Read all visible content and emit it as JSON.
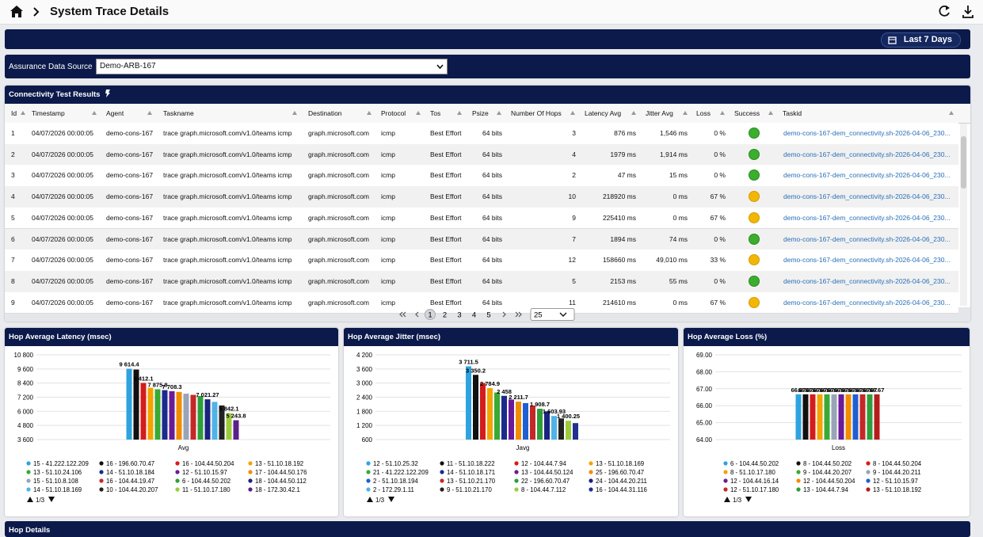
{
  "header": {
    "title": "System Trace Details",
    "date_range": "Last 7 Days"
  },
  "source": {
    "label": "Assurance Data Source",
    "value": "Demo-ARB-167"
  },
  "table": {
    "title": "Connectivity Test Results",
    "columns": [
      "Id",
      "Timestamp",
      "Agent",
      "Taskname",
      "Destination",
      "Protocol",
      "Tos",
      "Psize",
      "Number Of Hops",
      "Latency Avg",
      "Jitter Avg",
      "Loss",
      "Success",
      "Taskid"
    ],
    "rows": [
      {
        "cells": [
          "1",
          "04/07/2026 00:00:05",
          "demo-cons-167",
          "trace graph.microsoft.com/v1.0/teams icmp",
          "graph.microsoft.com",
          "icmp",
          "Best Effort",
          "64 bits",
          "3",
          "876 ms",
          "1,546 ms",
          "0 %",
          "demo-cons-167-dem_connectivity.sh-2026-04-06_230..."
        ],
        "success": true
      },
      {
        "cells": [
          "2",
          "04/07/2026 00:00:05",
          "demo-cons-167",
          "trace graph.microsoft.com/v1.0/teams icmp",
          "graph.microsoft.com",
          "icmp",
          "Best Effort",
          "64 bits",
          "4",
          "1979 ms",
          "1,914 ms",
          "0 %",
          "demo-cons-167-dem_connectivity.sh-2026-04-06_230..."
        ],
        "success": true
      },
      {
        "cells": [
          "3",
          "04/07/2026 00:00:05",
          "demo-cons-167",
          "trace graph.microsoft.com/v1.0/teams icmp",
          "graph.microsoft.com",
          "icmp",
          "Best Effort",
          "64 bits",
          "2",
          "47 ms",
          "15 ms",
          "0 %",
          "demo-cons-167-dem_connectivity.sh-2026-04-06_230..."
        ],
        "success": true
      },
      {
        "cells": [
          "4",
          "04/07/2026 00:00:05",
          "demo-cons-167",
          "trace graph.microsoft.com/v1.0/teams icmp",
          "graph.microsoft.com",
          "icmp",
          "Best Effort",
          "64 bits",
          "10",
          "218920 ms",
          "0 ms",
          "67 %",
          "demo-cons-167-dem_connectivity.sh-2026-04-06_230..."
        ],
        "success": false
      },
      {
        "cells": [
          "5",
          "04/07/2026 00:00:05",
          "demo-cons-167",
          "trace graph.microsoft.com/v1.0/teams icmp",
          "graph.microsoft.com",
          "icmp",
          "Best Effort",
          "64 bits",
          "9",
          "225410 ms",
          "0 ms",
          "67 %",
          "demo-cons-167-dem_connectivity.sh-2026-04-06_230..."
        ],
        "success": false
      },
      {
        "cells": [
          "6",
          "04/07/2026 00:00:05",
          "demo-cons-167",
          "trace graph.microsoft.com/v1.0/teams icmp",
          "graph.microsoft.com",
          "icmp",
          "Best Effort",
          "64 bits",
          "7",
          "1894 ms",
          "74 ms",
          "0 %",
          "demo-cons-167-dem_connectivity.sh-2026-04-06_230..."
        ],
        "success": true
      },
      {
        "cells": [
          "7",
          "04/07/2026 00:00:05",
          "demo-cons-167",
          "trace graph.microsoft.com/v1.0/teams icmp",
          "graph.microsoft.com",
          "icmp",
          "Best Effort",
          "64 bits",
          "12",
          "158660 ms",
          "49,010 ms",
          "33 %",
          "demo-cons-167-dem_connectivity.sh-2026-04-06_230..."
        ],
        "success": false
      },
      {
        "cells": [
          "8",
          "04/07/2026 00:00:05",
          "demo-cons-167",
          "trace graph.microsoft.com/v1.0/teams icmp",
          "graph.microsoft.com",
          "icmp",
          "Best Effort",
          "64 bits",
          "5",
          "2153 ms",
          "55 ms",
          "0 %",
          "demo-cons-167-dem_connectivity.sh-2026-04-06_230..."
        ],
        "success": true
      },
      {
        "cells": [
          "9",
          "04/07/2026 00:00:05",
          "demo-cons-167",
          "trace graph.microsoft.com/v1.0/teams icmp",
          "graph.microsoft.com",
          "icmp",
          "Best Effort",
          "64 bits",
          "11",
          "214610 ms",
          "0 ms",
          "67 %",
          "demo-cons-167-dem_connectivity.sh-2026-04-06_230..."
        ],
        "success": false
      }
    ],
    "pages": [
      1,
      2,
      3,
      4,
      5
    ],
    "current_page": 1,
    "page_size": 25
  },
  "chart_data": [
    {
      "type": "bar",
      "title": "Hop Average Latency (msec)",
      "categories": [
        "Avg"
      ],
      "ylim": [
        3600,
        10800
      ],
      "yticks": [
        {
          "value": 3600,
          "label": "3 600"
        },
        {
          "value": 4800,
          "label": "4 800"
        },
        {
          "value": 6000,
          "label": "6 000"
        },
        {
          "value": 7200,
          "label": "7 200"
        },
        {
          "value": 8400,
          "label": "8 400"
        },
        {
          "value": 9600,
          "label": "9 600"
        },
        {
          "value": 10800,
          "label": "10 800"
        }
      ],
      "grid": true,
      "legend_page": "1/3",
      "series": [
        {
          "name": "15 - 41.222.122.209",
          "color": "#2ea3e0",
          "values": [
            9614.4
          ],
          "value_labels": [
            "9 614.4"
          ]
        },
        {
          "name": "16 - 196.60.70.47",
          "color": "#111111",
          "values": [
            9550
          ]
        },
        {
          "name": "16 - 104.44.50.204",
          "color": "#d41c1c",
          "values": [
            8412.1
          ],
          "value_labels": [
            "8 412.1"
          ]
        },
        {
          "name": "13 - 51.10.18.192",
          "color": "#f4a300",
          "values": [
            8000
          ]
        },
        {
          "name": "13 - 51.10.24.106",
          "color": "#3aaa35",
          "values": [
            7875.8
          ],
          "value_labels": [
            "7 875.8"
          ]
        },
        {
          "name": "14 - 51.10.18.184",
          "color": "#1c2a8c",
          "values": [
            7800
          ]
        },
        {
          "name": "12 - 51.10.15.97",
          "color": "#6a1b9a",
          "values": [
            7708.3
          ],
          "value_labels": [
            "7 708.3"
          ]
        },
        {
          "name": "17 - 104.44.50.176",
          "color": "#f28c00",
          "values": [
            7650
          ]
        },
        {
          "name": "15 - 51.10.8.108",
          "color": "#9aa4b8",
          "values": [
            7500
          ]
        },
        {
          "name": "16 - 104.44.19.47",
          "color": "#c62828",
          "values": [
            7400
          ]
        },
        {
          "name": "6 - 104.44.50.202",
          "color": "#2e9e3a",
          "values": [
            7300
          ]
        },
        {
          "name": "18 - 104.44.50.112",
          "color": "#1a2380",
          "values": [
            7021.27
          ],
          "value_labels": [
            "7 021.27"
          ]
        },
        {
          "name": "14 - 51.10.18.169",
          "color": "#4fb3e8",
          "values": [
            6800
          ]
        },
        {
          "name": "10 - 104.44.20.207",
          "color": "#222222",
          "values": [
            6500
          ]
        },
        {
          "name": "11 - 51.10.17.180",
          "color": "#9ccc3c",
          "values": [
            5842.1
          ],
          "value_labels": [
            "5 842.1"
          ]
        },
        {
          "name": "18 - 172.30.42.1",
          "color": "#5b1f8a",
          "values": [
            5243.8
          ],
          "value_labels": [
            "5 243.8"
          ]
        }
      ]
    },
    {
      "type": "bar",
      "title": "Hop Average Jitter (msec)",
      "categories": [
        "Javg"
      ],
      "ylim": [
        600,
        4200
      ],
      "yticks": [
        600,
        {
          "value": 1200,
          "label": "1 200"
        },
        {
          "value": 1800,
          "label": "1 800"
        },
        {
          "value": 2400,
          "label": "2 400"
        },
        {
          "value": 3000,
          "label": "3 000"
        },
        {
          "value": 3600,
          "label": "3 600"
        },
        {
          "value": 4200,
          "label": "4 200"
        }
      ],
      "grid": true,
      "legend_page": "1/3",
      "series": [
        {
          "name": "12 - 51.10.25.32",
          "color": "#2ea3e0",
          "values": [
            3711.5
          ],
          "value_labels": [
            "3 711.5"
          ]
        },
        {
          "name": "11 - 51.10.18.222",
          "color": "#111111",
          "values": [
            3350.2
          ],
          "value_labels": [
            "3 350.2"
          ]
        },
        {
          "name": "12 - 104.44.7.94",
          "color": "#d41c1c",
          "values": [
            3000
          ]
        },
        {
          "name": "13 - 51.10.18.169",
          "color": "#f4a300",
          "values": [
            2784.9
          ],
          "value_labels": [
            "2 784.9"
          ]
        },
        {
          "name": "21 - 41.222.122.209",
          "color": "#3aaa35",
          "values": [
            2600
          ]
        },
        {
          "name": "14 - 51.10.18.171",
          "color": "#1c2a8c",
          "values": [
            2458
          ],
          "value_labels": [
            "2 458"
          ]
        },
        {
          "name": "13 - 104.44.50.124",
          "color": "#6a1b9a",
          "values": [
            2300
          ]
        },
        {
          "name": "25 - 196.60.70.47",
          "color": "#f28c00",
          "values": [
            2211.7
          ],
          "value_labels": [
            "2 211.7"
          ]
        },
        {
          "name": "2 - 51.10.18.194",
          "color": "#1f5fd1",
          "values": [
            2150
          ]
        },
        {
          "name": "13 - 51.10.21.170",
          "color": "#c62828",
          "values": [
            2050
          ]
        },
        {
          "name": "22 - 196.60.70.47",
          "color": "#2e9e3a",
          "values": [
            1908.7
          ],
          "value_labels": [
            "1 908.7"
          ]
        },
        {
          "name": "24 - 104.44.20.211",
          "color": "#1a2380",
          "values": [
            1800
          ]
        },
        {
          "name": "2 - 172.29.1.11",
          "color": "#4fb3e8",
          "values": [
            1603.93
          ],
          "value_labels": [
            "1 603.93"
          ]
        },
        {
          "name": "9 - 51.10.21.170",
          "color": "#222222",
          "values": [
            1500
          ]
        },
        {
          "name": "8 - 104.44.7.112",
          "color": "#9ccc3c",
          "values": [
            1400.25
          ],
          "value_labels": [
            "1 400.25"
          ]
        },
        {
          "name": "16 - 104.44.31.116",
          "color": "#22308f",
          "values": [
            1300
          ]
        }
      ]
    },
    {
      "type": "bar",
      "title": "Hop Average Loss (%)",
      "categories": [
        "Loss"
      ],
      "ylim": [
        64,
        69
      ],
      "yticks": [
        {
          "value": 64,
          "label": "64.00"
        },
        {
          "value": 65,
          "label": "65.00"
        },
        {
          "value": 66,
          "label": "66.00"
        },
        {
          "value": 67,
          "label": "67.00"
        },
        {
          "value": 68,
          "label": "68.00"
        },
        {
          "value": 69,
          "label": "69.00"
        }
      ],
      "grid": true,
      "data_labels": true,
      "legend_page": "1/3",
      "series": [
        {
          "name": "6 - 104.44.50.202",
          "color": "#2ea3e0",
          "values": [
            66.67
          ]
        },
        {
          "name": "8 - 104.44.50.202",
          "color": "#111111",
          "values": [
            66.67
          ]
        },
        {
          "name": "8 - 104.44.50.204",
          "color": "#d41c1c",
          "values": [
            66.67
          ]
        },
        {
          "name": "8 - 51.10.17.180",
          "color": "#f4a300",
          "values": [
            66.67
          ]
        },
        {
          "name": "9 - 104.44.20.207",
          "color": "#3aaa35",
          "values": [
            66.67
          ]
        },
        {
          "name": "9 - 104.44.20.211",
          "color": "#9aa4b8",
          "values": [
            66.67
          ]
        },
        {
          "name": "12 - 104.44.16.14",
          "color": "#6a1b9a",
          "values": [
            66.67
          ]
        },
        {
          "name": "12 - 104.44.50.204",
          "color": "#f28c00",
          "values": [
            66.67
          ]
        },
        {
          "name": "12 - 51.10.15.97",
          "color": "#1f5fd1",
          "values": [
            66.67
          ]
        },
        {
          "name": "12 - 51.10.17.180",
          "color": "#c62828",
          "values": [
            66.67
          ]
        },
        {
          "name": "13 - 104.44.7.94",
          "color": "#2e9e3a",
          "values": [
            66.67
          ]
        },
        {
          "name": "13 - 51.10.18.192",
          "color": "#b71c1c",
          "values": [
            66.67
          ]
        }
      ]
    }
  ],
  "footer": {
    "title": "Hop Details"
  }
}
